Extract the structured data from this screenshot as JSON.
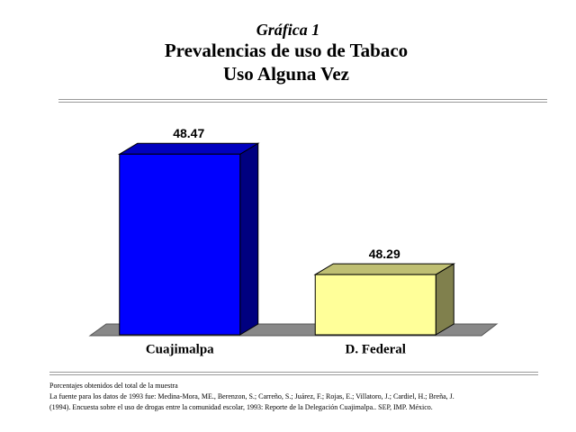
{
  "chart_data": {
    "type": "bar3d",
    "subtitle": "Gráfica 1",
    "title": "Prevalencias de uso de Tabaco",
    "title2": "Uso Alguna Vez",
    "categories": [
      "Cuajimalpa",
      "D. Federal"
    ],
    "values": [
      48.47,
      48.29
    ],
    "colors": [
      "#0000ff",
      "#ffff99"
    ],
    "ylim": [
      48.2,
      48.5
    ],
    "notes": [
      "Porcentajes obtenidos del total de la muestra",
      "La fuente para los datos de 1993 fue: Medina-Mora, ME., Berenzon, S.; Carreño, S.; Juárez, F.; Rojas, E.; Villatoro, J.; Cardiel, H.; Breña, J.",
      "(1994). Encuesta sobre el uso de drogas entre la comunidad escolar, 1993: Reporte de la Delegación Cuajimalpa.. SEP, IMP. México."
    ]
  }
}
